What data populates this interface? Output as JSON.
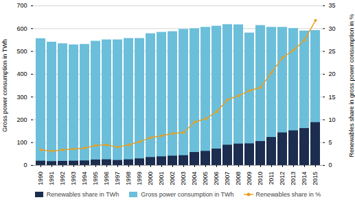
{
  "chart_data": {
    "type": "bar",
    "categories": [
      "1990",
      "1991",
      "1992",
      "1993",
      "1994",
      "1995",
      "1996",
      "1997",
      "1998",
      "1999",
      "2000",
      "2001",
      "2002",
      "2003",
      "2004",
      "2005",
      "2006",
      "2007",
      "2008",
      "2009",
      "2010",
      "2011",
      "2012",
      "2013",
      "2014",
      "2015"
    ],
    "series": [
      {
        "name": "Renewables share in TWh",
        "type": "bar",
        "color": "#1c2d4f",
        "values": [
          19,
          17,
          18,
          19,
          20,
          24,
          25,
          22,
          25,
          29,
          35,
          38,
          41,
          43,
          57,
          62,
          72,
          89,
          94,
          95,
          105,
          123,
          143,
          152,
          162,
          188
        ]
      },
      {
        "name": "Gross power consumption in TWh",
        "type": "bar",
        "color": "#6bbfda",
        "values": [
          556,
          541,
          534,
          529,
          531,
          545,
          551,
          551,
          557,
          557,
          578,
          584,
          587,
          597,
          600,
          606,
          611,
          618,
          617,
          581,
          614,
          606,
          606,
          601,
          590,
          592
        ]
      },
      {
        "name": "Renewables share in %",
        "type": "line",
        "axis": "y2",
        "color": "#e8a020",
        "marker": "circle",
        "values": [
          3.4,
          3.1,
          3.4,
          3.6,
          3.8,
          4.4,
          4.5,
          4.0,
          4.5,
          5.2,
          6.1,
          6.5,
          7.0,
          7.2,
          9.5,
          10.2,
          11.8,
          14.4,
          15.3,
          16.4,
          17.1,
          20.4,
          23.6,
          25.3,
          27.5,
          31.8
        ]
      }
    ],
    "ylabel": "Gross power consumption in TWh",
    "y2label": "Renewables share in gross power consumption in %",
    "ylim": [
      0,
      700
    ],
    "yticks": [
      0,
      100,
      200,
      300,
      400,
      500,
      600,
      700
    ],
    "y2lim": [
      0,
      35
    ],
    "y2ticks": [
      0,
      5,
      10,
      15,
      20,
      25,
      30,
      35
    ],
    "stacked": false,
    "grid": true,
    "legend": "bottom"
  }
}
